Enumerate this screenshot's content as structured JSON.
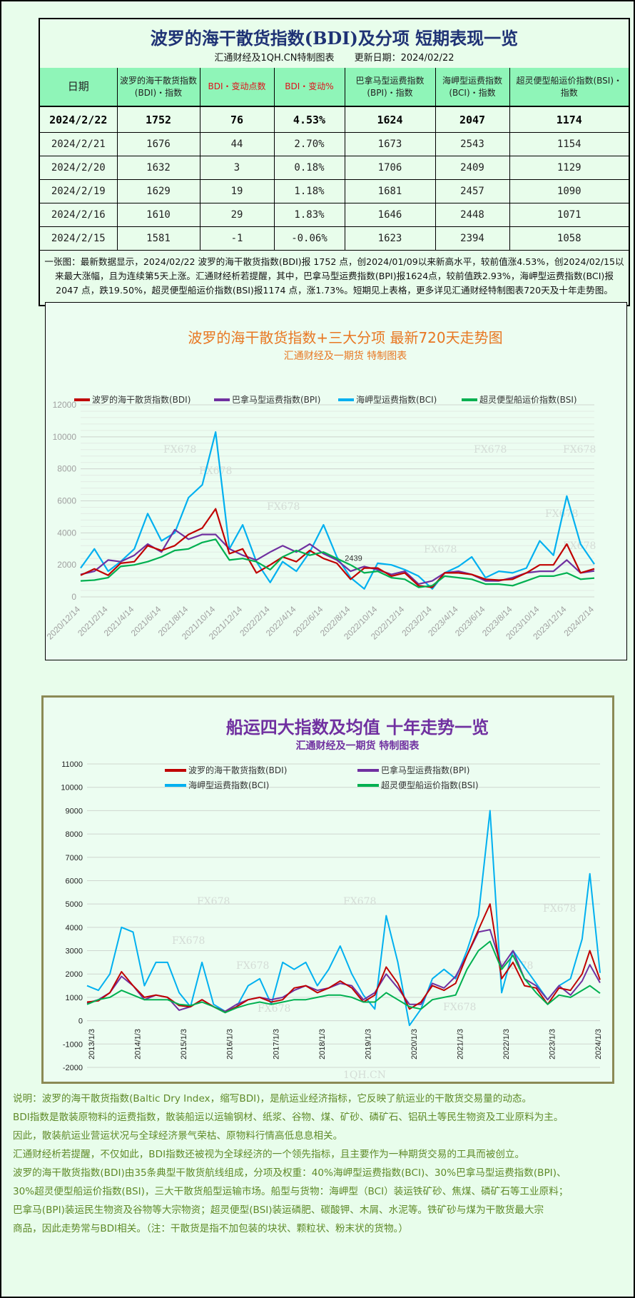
{
  "table": {
    "title": "波罗的海干散货指数(BDI)及分项 短期表现一览",
    "source": "汇通财经及1QH.CN特制图表",
    "updated": "更新日期：2024/02/22",
    "headers": [
      "日期",
      "波罗的海干散货指数(BDI)・指数",
      "BDI・变动点数",
      "BDI・变动%",
      "巴拿马型运费指数(BPI)・指数",
      "海岬型运费指数(BCI)・指数",
      "超灵便型船运价指数(BSI)・指数"
    ],
    "rows": [
      [
        "2024/2/22",
        "1752",
        "76",
        "4.53%",
        "1624",
        "2047",
        "1174"
      ],
      [
        "2024/2/21",
        "1676",
        "44",
        "2.70%",
        "1673",
        "2543",
        "1154"
      ],
      [
        "2024/2/20",
        "1632",
        "3",
        "0.18%",
        "1706",
        "2409",
        "1129"
      ],
      [
        "2024/2/19",
        "1629",
        "19",
        "1.18%",
        "1681",
        "2457",
        "1090"
      ],
      [
        "2024/2/16",
        "1610",
        "29",
        "1.83%",
        "1646",
        "2448",
        "1071"
      ],
      [
        "2024/2/15",
        "1581",
        "-1",
        "-0.06%",
        "1623",
        "2394",
        "1058"
      ]
    ],
    "note": "一张图：最新数据显示，2024/02/22 波罗的海干散货指数(BDI)报 1752 点，创2024/01/09以来新高水平，较前值涨4.53%，创2024/02/15以来最大涨幅，且为连续第5天上涨。汇通财经析若提醒，其中，巴拿马型运费指数(BPI)报1624点，较前值跌2.93%，海岬型运费指数(BCI)报2047 点，跌19.50%，超灵便型船运价指数(BSI)报1174 点，涨1.73%。短期见上表格，更多详见汇通财经特制图表720天及十年走势图。"
  },
  "colors": {
    "bdi": "#c00000",
    "bpi": "#7030a0",
    "bci": "#00b0f0",
    "bsi": "#00b050"
  },
  "watermark": "FX678",
  "chart_data": [
    {
      "type": "line",
      "title": "波罗的海干散货指数+三大分项  最新720天走势图",
      "subtitle": "汇通财经及一期货  特制图表",
      "legend_position": "top",
      "grid": true,
      "ylim": [
        0,
        12000
      ],
      "yticks": [
        "0",
        "2000",
        "4000",
        "6000",
        "8000",
        "10000",
        "12000"
      ],
      "xticks": [
        "2020/12/14",
        "2021/2/14",
        "2021/4/14",
        "2021/6/14",
        "2021/8/14",
        "2021/10/14",
        "2021/12/14",
        "2022/2/14",
        "2022/4/14",
        "2022/6/14",
        "2022/8/14",
        "2022/10/14",
        "2022/12/14",
        "2023/2/14",
        "2023/4/14",
        "2023/6/14",
        "2023/8/14",
        "2023/10/14",
        "2023/12/14",
        "2024/2/14"
      ],
      "annotation": "2439",
      "x": [
        "2020/12/14",
        "2021/1/14",
        "2021/2/14",
        "2021/3/14",
        "2021/4/14",
        "2021/5/14",
        "2021/6/14",
        "2021/7/14",
        "2021/8/14",
        "2021/9/14",
        "2021/10/14",
        "2021/11/14",
        "2021/12/14",
        "2022/1/14",
        "2022/2/14",
        "2022/3/14",
        "2022/4/14",
        "2022/5/14",
        "2022/6/14",
        "2022/7/14",
        "2022/8/14",
        "2022/9/14",
        "2022/10/14",
        "2022/11/14",
        "2022/12/14",
        "2023/1/14",
        "2023/2/14",
        "2023/3/14",
        "2023/4/14",
        "2023/5/14",
        "2023/6/14",
        "2023/7/14",
        "2023/8/14",
        "2023/9/14",
        "2023/10/14",
        "2023/11/14",
        "2023/12/14",
        "2024/1/14",
        "2024/2/14"
      ],
      "series": [
        {
          "name": "波罗的海干散货指数(BDI)",
          "key": "bdi",
          "values": [
            1350,
            1750,
            1350,
            2100,
            2200,
            3200,
            2900,
            3200,
            3900,
            4300,
            5500,
            2700,
            3000,
            1500,
            2000,
            2500,
            2200,
            2900,
            2400,
            2100,
            1100,
            1800,
            1800,
            1300,
            1500,
            700,
            600,
            1500,
            1500,
            1400,
            1100,
            1050,
            1100,
            1500,
            2000,
            2000,
            3300,
            1500,
            1752
          ]
        },
        {
          "name": "巴拿马型运费指数(BPI)",
          "key": "bpi",
          "values": [
            1400,
            1600,
            2300,
            2200,
            2600,
            3300,
            2800,
            4200,
            3600,
            3900,
            3900,
            3000,
            2600,
            2300,
            2800,
            3200,
            2800,
            3300,
            2700,
            2300,
            1600,
            1900,
            1700,
            1400,
            1600,
            800,
            1000,
            1500,
            1600,
            1400,
            1000,
            1000,
            1200,
            1500,
            1600,
            1600,
            2300,
            1500,
            1624
          ]
        },
        {
          "name": "海岬型运费指数(BCI)",
          "key": "bci",
          "values": [
            1800,
            3000,
            1600,
            2200,
            3000,
            5200,
            3500,
            4000,
            6200,
            7000,
            10300,
            3000,
            4500,
            2200,
            900,
            2200,
            1600,
            2800,
            4500,
            2500,
            1200,
            500,
            2100,
            2000,
            1700,
            1300,
            500,
            1500,
            1900,
            2500,
            1200,
            1600,
            1500,
            1800,
            3500,
            2600,
            6300,
            3300,
            2047
          ]
        },
        {
          "name": "超灵便型船运价指数(BSI)",
          "key": "bsi",
          "values": [
            1000,
            1050,
            1200,
            1900,
            2000,
            2200,
            2500,
            2900,
            3000,
            3400,
            3600,
            2300,
            2400,
            2200,
            1700,
            2500,
            2900,
            2600,
            2800,
            2400,
            2000,
            1500,
            1600,
            1200,
            1100,
            600,
            700,
            1300,
            1200,
            1100,
            800,
            800,
            700,
            1000,
            1300,
            1300,
            1500,
            1100,
            1174
          ]
        }
      ]
    },
    {
      "type": "line",
      "title": "船运四大指数及均值 十年走势一览",
      "subtitle": "汇通财经及一期货 特制图表",
      "legend_position": "top",
      "grid": true,
      "ylim": [
        -2000,
        11000
      ],
      "yticks": [
        "-2000",
        "-1000",
        "0",
        "1000",
        "2000",
        "3000",
        "4000",
        "5000",
        "6000",
        "7000",
        "8000",
        "9000",
        "10000",
        "11000"
      ],
      "xticks": [
        "2013/1/3",
        "2014/1/3",
        "2015/1/3",
        "2016/1/3",
        "2017/1/3",
        "2018/1/3",
        "2019/1/3",
        "2020/1/3",
        "2021/1/3",
        "2022/1/3",
        "2023/1/3",
        "2024/1/3"
      ],
      "footer_mark": "1QH.CN",
      "x": [
        "2013/1/3",
        "2013/4/3",
        "2013/7/3",
        "2013/10/3",
        "2014/1/3",
        "2014/4/3",
        "2014/7/3",
        "2014/10/3",
        "2015/1/3",
        "2015/4/3",
        "2015/7/3",
        "2015/10/3",
        "2016/1/3",
        "2016/4/3",
        "2016/7/3",
        "2016/10/3",
        "2017/1/3",
        "2017/4/3",
        "2017/7/3",
        "2017/10/3",
        "2018/1/3",
        "2018/4/3",
        "2018/7/3",
        "2018/10/3",
        "2019/1/3",
        "2019/4/3",
        "2019/7/3",
        "2019/10/3",
        "2020/1/3",
        "2020/4/3",
        "2020/7/3",
        "2020/10/3",
        "2021/1/3",
        "2021/4/3",
        "2021/7/3",
        "2021/10/3",
        "2022/1/3",
        "2022/4/3",
        "2022/7/3",
        "2022/10/3",
        "2023/1/3",
        "2023/4/3",
        "2023/7/3",
        "2023/10/3",
        "2023/12/3",
        "2024/2/22"
      ],
      "series": [
        {
          "name": "波罗的海干散货指数(BDI)",
          "key": "bdi",
          "values": [
            800,
            850,
            1200,
            2100,
            1500,
            1000,
            1100,
            1000,
            650,
            600,
            900,
            600,
            350,
            600,
            900,
            1000,
            800,
            900,
            1400,
            1500,
            1200,
            1400,
            1700,
            1400,
            800,
            1100,
            2300,
            1600,
            500,
            800,
            1500,
            1300,
            1600,
            2800,
            3900,
            5000,
            1800,
            2500,
            1500,
            1400,
            700,
            1400,
            1300,
            2000,
            3000,
            1752
          ]
        },
        {
          "name": "巴拿马型运费指数(BPI)",
          "key": "bpi",
          "values": [
            750,
            900,
            1200,
            1900,
            1500,
            900,
            1100,
            1000,
            450,
            600,
            900,
            600,
            400,
            700,
            900,
            1000,
            900,
            1000,
            1300,
            1500,
            1300,
            1400,
            1600,
            1500,
            900,
            1200,
            2000,
            1400,
            700,
            700,
            1600,
            1400,
            1900,
            2800,
            3800,
            3900,
            2300,
            3000,
            1800,
            1500,
            900,
            1500,
            1100,
            1700,
            2400,
            1624
          ]
        },
        {
          "name": "海岬型运费指数(BCI)",
          "key": "bci",
          "values": [
            1500,
            1300,
            2000,
            4000,
            3800,
            1500,
            2500,
            2500,
            1200,
            600,
            2500,
            700,
            400,
            600,
            1500,
            1800,
            700,
            2500,
            2200,
            2500,
            1500,
            2200,
            3200,
            2000,
            1100,
            500,
            4500,
            2500,
            -200,
            500,
            1800,
            2200,
            1800,
            3000,
            4500,
            9000,
            1200,
            3000,
            2300,
            1600,
            900,
            1500,
            1800,
            3500,
            6300,
            2047
          ]
        },
        {
          "name": "超灵便型船运价指数(BSI)",
          "key": "bsi",
          "values": [
            700,
            900,
            1000,
            1300,
            1100,
            900,
            900,
            900,
            700,
            650,
            800,
            600,
            350,
            550,
            700,
            800,
            700,
            800,
            900,
            900,
            1000,
            1100,
            1100,
            1000,
            800,
            800,
            1200,
            900,
            600,
            500,
            900,
            1000,
            1100,
            2200,
            3000,
            3400,
            2200,
            2800,
            1800,
            1200,
            700,
            1100,
            1000,
            1300,
            1500,
            1174
          ]
        }
      ]
    }
  ],
  "notes": [
    "说明：波罗的海干散货指数(Baltic Dry Index，缩写BDI)，是航运业经济指标，它反映了航运业的干散货交易量的动态。",
    "BDI指数是散装原物料的运费指数，散装船运以运输钢材、纸浆、谷物、煤、矿砂、磷矿石、铝矾土等民生物资及工业原料为主。",
    "因此，散装航运业营运状况与全球经济景气荣枯、原物料行情高低息息相关。",
    "汇通财经析若提醒，不仅如此，BDI指数还被视为全球经济的一个领先指标，且主要作为一种期货交易的工具而被创立。",
    "波罗的海干散货指数(BDI)由35条典型干散货航线组成，分项及权重：40%海岬型运费指数(BCI)、30%巴拿马型运费指数(BPI)、",
    "30%超灵便型船运价指数(BSI)，三大干散货船型运输市场。船型与货物：海岬型（BCI）装运铁矿砂、焦煤、磷矿石等工业原料；",
    "巴拿马(BPI)装运民生物资及谷物等大宗物资；超灵便型(BSI)装运磷肥、碳酸钾、木屑、水泥等。铁矿砂与煤为干散货最大宗",
    "商品，因此走势常与BDI相关。（注：干散货是指不加包装的块状、颗粒状、粉末状的货物。）"
  ]
}
